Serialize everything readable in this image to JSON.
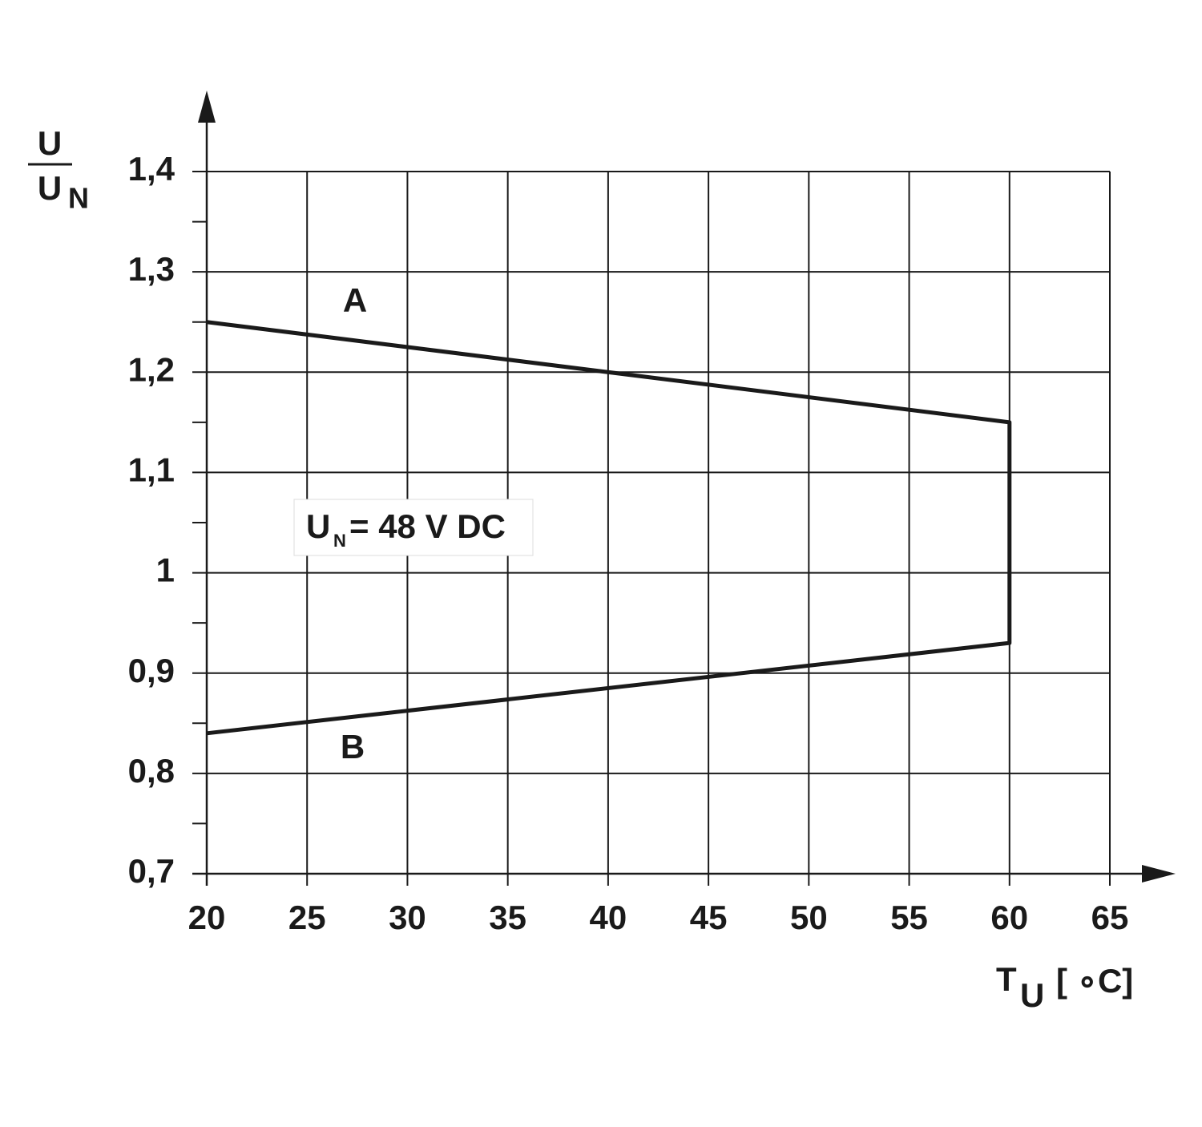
{
  "chart_data": {
    "type": "line",
    "ylabel": {
      "numerator": "U",
      "denominator": "U",
      "denominator_sub": "N"
    },
    "xlabel": {
      "main": "T",
      "sub": "U",
      "unit": "[ ∘C]"
    },
    "x": [
      20,
      60,
      60,
      20
    ],
    "series": [
      {
        "color": "#1a1a1a",
        "values": [
          1.25,
          1.15,
          0.93,
          0.84
        ]
      }
    ],
    "xlim": [
      20,
      65
    ],
    "ylim": [
      0.7,
      1.4
    ],
    "xticks": [
      20,
      25,
      30,
      35,
      40,
      45,
      50,
      55,
      60,
      65
    ],
    "yticks": [
      {
        "value": 0.7,
        "label": "0,7"
      },
      {
        "value": 0.8,
        "label": "0,8"
      },
      {
        "value": 0.9,
        "label": "0,9"
      },
      1,
      {
        "value": 1.1,
        "label": "1,1"
      },
      {
        "value": 1.2,
        "label": "1,2"
      },
      {
        "value": 1.3,
        "label": "1,3"
      },
      {
        "value": 1.4,
        "label": "1,4"
      }
    ],
    "yminorticks": [
      0.75,
      0.85,
      0.95,
      1.05,
      1.15,
      1.25,
      1.35
    ],
    "grid": true,
    "annotations": [
      "A",
      "B"
    ],
    "note": {
      "main": "U",
      "sub": "N",
      "rest": "= 48 V DC"
    }
  }
}
